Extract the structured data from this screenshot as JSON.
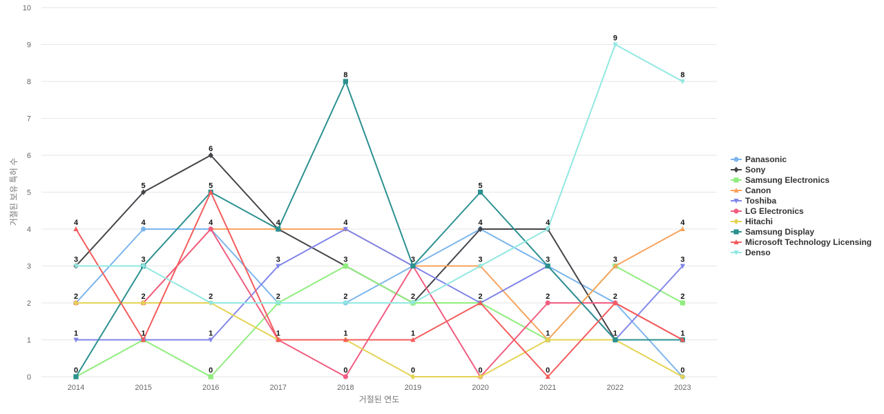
{
  "chart_data": {
    "type": "line",
    "title": "",
    "xlabel": "거절된 연도",
    "ylabel": "거절된 보유 특허 수",
    "x": [
      "2014",
      "2015",
      "2016",
      "2017",
      "2018",
      "2019",
      "2020",
      "2021",
      "2022",
      "2023"
    ],
    "ylim": [
      0,
      10
    ],
    "yticks": [
      0,
      1,
      2,
      3,
      4,
      5,
      6,
      7,
      8,
      9,
      10
    ],
    "grid": true,
    "legend_position": "right",
    "series": [
      {
        "name": "Panasonic",
        "color": "#7cb5ec",
        "marker": "circle",
        "values": [
          2,
          4,
          4,
          2,
          2,
          3,
          4,
          3,
          2,
          0
        ]
      },
      {
        "name": "Sony",
        "color": "#434348",
        "marker": "diamond",
        "values": [
          3,
          5,
          6,
          4,
          3,
          2,
          4,
          4,
          1,
          1
        ]
      },
      {
        "name": "Samsung Electronics",
        "color": "#90ed7d",
        "marker": "square",
        "values": [
          0,
          1,
          0,
          2,
          3,
          2,
          2,
          1,
          3,
          2
        ]
      },
      {
        "name": "Canon",
        "color": "#f7a35c",
        "marker": "triangle",
        "values": [
          2,
          2,
          4,
          4,
          4,
          3,
          3,
          1,
          3,
          4
        ]
      },
      {
        "name": "Toshiba",
        "color": "#8085e9",
        "marker": "triangle-down",
        "values": [
          1,
          1,
          1,
          3,
          4,
          3,
          2,
          3,
          1,
          3
        ]
      },
      {
        "name": "LG Electronics",
        "color": "#f15c80",
        "marker": "circle",
        "values": [
          2,
          2,
          4,
          1,
          0,
          3,
          0,
          2,
          2,
          1
        ]
      },
      {
        "name": "Hitachi",
        "color": "#e4d354",
        "marker": "diamond",
        "values": [
          2,
          2,
          2,
          1,
          1,
          0,
          0,
          1,
          1,
          0
        ]
      },
      {
        "name": "Samsung Display",
        "color": "#2b908f",
        "marker": "square",
        "values": [
          0,
          3,
          5,
          4,
          8,
          3,
          5,
          3,
          1,
          1
        ]
      },
      {
        "name": "Microsoft Technology Licensing",
        "color": "#f45b5b",
        "marker": "triangle",
        "values": [
          4,
          1,
          5,
          1,
          1,
          1,
          2,
          0,
          2,
          1
        ]
      },
      {
        "name": "Denso",
        "color": "#91e8e1",
        "marker": "triangle-down",
        "values": [
          3,
          3,
          2,
          2,
          2,
          2,
          3,
          4,
          9,
          8
        ]
      }
    ],
    "data_labels": [
      {
        "series": "Microsoft Technology Licensing",
        "x": "2014",
        "y": 4,
        "text": "4"
      },
      {
        "series": "Sony",
        "x": "2014",
        "y": 3,
        "text": "3"
      },
      {
        "series": "Panasonic",
        "x": "2014",
        "y": 2,
        "text": "2"
      },
      {
        "series": "Toshiba",
        "x": "2014",
        "y": 1,
        "text": "1"
      },
      {
        "series": "Samsung Display",
        "x": "2014",
        "y": 0,
        "text": "0"
      },
      {
        "series": "Sony",
        "x": "2015",
        "y": 5,
        "text": "5"
      },
      {
        "series": "Panasonic",
        "x": "2015",
        "y": 4,
        "text": "4"
      },
      {
        "series": "Samsung Display",
        "x": "2015",
        "y": 3,
        "text": "3"
      },
      {
        "series": "Canon",
        "x": "2015",
        "y": 2,
        "text": "2"
      },
      {
        "series": "Microsoft Technology Licensing",
        "x": "2015",
        "y": 1,
        "text": "1"
      },
      {
        "series": "Sony",
        "x": "2016",
        "y": 6,
        "text": "6"
      },
      {
        "series": "Samsung Display",
        "x": "2016",
        "y": 5,
        "text": "5"
      },
      {
        "series": "LG Electronics",
        "x": "2016",
        "y": 4,
        "text": "4"
      },
      {
        "series": "Denso",
        "x": "2016",
        "y": 2,
        "text": "2"
      },
      {
        "series": "Toshiba",
        "x": "2016",
        "y": 1,
        "text": "1"
      },
      {
        "series": "Samsung Electronics",
        "x": "2016",
        "y": 0,
        "text": "0"
      },
      {
        "series": "Samsung Display",
        "x": "2017",
        "y": 4,
        "text": "4"
      },
      {
        "series": "Toshiba",
        "x": "2017",
        "y": 3,
        "text": "3"
      },
      {
        "series": "Panasonic",
        "x": "2017",
        "y": 2,
        "text": "2"
      },
      {
        "series": "LG Electronics",
        "x": "2017",
        "y": 1,
        "text": "1"
      },
      {
        "series": "Samsung Display",
        "x": "2018",
        "y": 8,
        "text": "8"
      },
      {
        "series": "Toshiba",
        "x": "2018",
        "y": 4,
        "text": "4"
      },
      {
        "series": "Sony",
        "x": "2018",
        "y": 3,
        "text": "3"
      },
      {
        "series": "Panasonic",
        "x": "2018",
        "y": 2,
        "text": "2"
      },
      {
        "series": "Hitachi",
        "x": "2018",
        "y": 1,
        "text": "1"
      },
      {
        "series": "LG Electronics",
        "x": "2018",
        "y": 0,
        "text": "0"
      },
      {
        "series": "Panasonic",
        "x": "2019",
        "y": 3,
        "text": "3"
      },
      {
        "series": "Sony",
        "x": "2019",
        "y": 2,
        "text": "2"
      },
      {
        "series": "Microsoft Technology Licensing",
        "x": "2019",
        "y": 1,
        "text": "1"
      },
      {
        "series": "Hitachi",
        "x": "2019",
        "y": 0,
        "text": "0"
      },
      {
        "series": "Samsung Display",
        "x": "2020",
        "y": 5,
        "text": "5"
      },
      {
        "series": "Sony",
        "x": "2020",
        "y": 4,
        "text": "4"
      },
      {
        "series": "Canon",
        "x": "2020",
        "y": 3,
        "text": "3"
      },
      {
        "series": "Toshiba",
        "x": "2020",
        "y": 2,
        "text": "2"
      },
      {
        "series": "LG Electronics",
        "x": "2020",
        "y": 0,
        "text": "0"
      },
      {
        "series": "Denso",
        "x": "2021",
        "y": 4,
        "text": "4"
      },
      {
        "series": "Toshiba",
        "x": "2021",
        "y": 3,
        "text": "3"
      },
      {
        "series": "LG Electronics",
        "x": "2021",
        "y": 2,
        "text": "2"
      },
      {
        "series": "Canon",
        "x": "2021",
        "y": 1,
        "text": "1"
      },
      {
        "series": "Microsoft Technology Licensing",
        "x": "2021",
        "y": 0,
        "text": "0"
      },
      {
        "series": "Denso",
        "x": "2022",
        "y": 9,
        "text": "9"
      },
      {
        "series": "Canon",
        "x": "2022",
        "y": 3,
        "text": "3"
      },
      {
        "series": "LG Electronics",
        "x": "2022",
        "y": 2,
        "text": "2"
      },
      {
        "series": "Samsung Display",
        "x": "2022",
        "y": 1,
        "text": "1"
      },
      {
        "series": "Denso",
        "x": "2023",
        "y": 8,
        "text": "8"
      },
      {
        "series": "Canon",
        "x": "2023",
        "y": 4,
        "text": "4"
      },
      {
        "series": "Toshiba",
        "x": "2023",
        "y": 3,
        "text": "3"
      },
      {
        "series": "Samsung Electronics",
        "x": "2023",
        "y": 2,
        "text": "2"
      },
      {
        "series": "Samsung Display",
        "x": "2023",
        "y": 1,
        "text": "1"
      },
      {
        "series": "Panasonic",
        "x": "2023",
        "y": 0,
        "text": "0"
      }
    ]
  }
}
